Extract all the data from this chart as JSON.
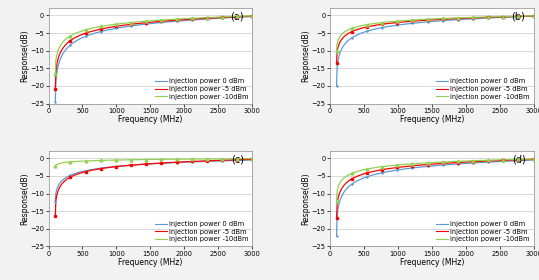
{
  "subplots": [
    {
      "label": "(a)",
      "series": [
        {
          "name": "injection power 0 dBm",
          "color": "#5B9BD5",
          "marker": "+",
          "start_val": -24.5,
          "end_val": -0.3,
          "shape": 0.38
        },
        {
          "name": "injection power -5 dBm",
          "color": "#FF0000",
          "marker": "s",
          "start_val": -21.0,
          "end_val": -0.2,
          "shape": 0.38
        },
        {
          "name": "injection power -10dBm",
          "color": "#92D050",
          "marker": "^",
          "start_val": -16.5,
          "end_val": -0.1,
          "shape": 0.4
        }
      ]
    },
    {
      "label": "(b)",
      "series": [
        {
          "name": "injection power 0 dBm",
          "color": "#5B9BD5",
          "marker": "+",
          "start_val": -20.0,
          "end_val": -0.2,
          "shape": 0.35
        },
        {
          "name": "injection power -5 dBm",
          "color": "#FF0000",
          "marker": "s",
          "start_val": -13.5,
          "end_val": -0.15,
          "shape": 0.38
        },
        {
          "name": "injection power -10dBm",
          "color": "#92D050",
          "marker": "^",
          "start_val": -10.0,
          "end_val": -0.1,
          "shape": 0.42
        }
      ]
    },
    {
      "label": "(c)",
      "series": [
        {
          "name": "injection power 0 dBm",
          "color": "#5B9BD5",
          "marker": "+",
          "start_val": -12.5,
          "end_val": -0.5,
          "shape": 0.42
        },
        {
          "name": "injection power -5 dBm",
          "color": "#FF0000",
          "marker": "s",
          "start_val": -16.5,
          "end_val": -0.3,
          "shape": 0.35
        },
        {
          "name": "injection power -10dBm",
          "color": "#92D050",
          "marker": "^",
          "start_val": -2.2,
          "end_val": -0.1,
          "shape": 0.55
        }
      ]
    },
    {
      "label": "(d)",
      "series": [
        {
          "name": "injection power 0 dBm",
          "color": "#5B9BD5",
          "marker": "+",
          "start_val": -22.0,
          "end_val": -0.5,
          "shape": 0.36
        },
        {
          "name": "injection power -5 dBm",
          "color": "#FF0000",
          "marker": "s",
          "start_val": -17.0,
          "end_val": -0.3,
          "shape": 0.38
        },
        {
          "name": "injection power -10dBm",
          "color": "#92D050",
          "marker": "^",
          "start_val": -12.0,
          "end_val": -0.2,
          "shape": 0.4
        }
      ]
    }
  ],
  "freq_start": 100,
  "freq_end": 3000,
  "ylim": [
    -25,
    2
  ],
  "yticks": [
    0,
    -5,
    -10,
    -15,
    -20,
    -25
  ],
  "xticks": [
    0,
    500,
    1000,
    1500,
    2000,
    2500,
    3000
  ],
  "xlabel": "Frequency (MHz)",
  "ylabel": "Response(dB)",
  "bg_color": "#F2F2F2",
  "plot_bg": "#FFFFFF",
  "legend_fontsize": 4.8,
  "axis_fontsize": 5.5,
  "tick_fontsize": 4.8,
  "label_fontsize": 7,
  "linewidth": 0.9,
  "markersize": 2.0,
  "n_markers": 14
}
